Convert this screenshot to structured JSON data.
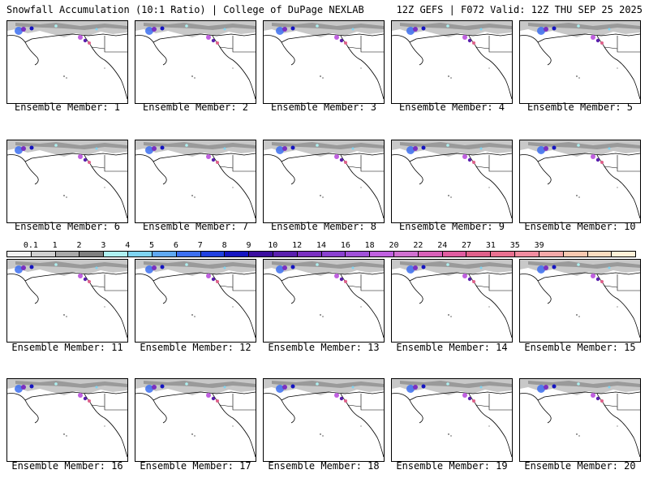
{
  "header": {
    "title_left": "Snowfall Accumulation (10:1 Ratio) | College of DuPage NEXLAB",
    "title_right": "12Z GEFS | F072 Valid: 12Z THU SEP 25 2025"
  },
  "members": [
    {
      "label": "Ensemble Member: 1"
    },
    {
      "label": "Ensemble Member: 2"
    },
    {
      "label": "Ensemble Member: 3"
    },
    {
      "label": "Ensemble Member: 4"
    },
    {
      "label": "Ensemble Member: 5"
    },
    {
      "label": "Ensemble Member: 6"
    },
    {
      "label": "Ensemble Member: 7"
    },
    {
      "label": "Ensemble Member: 8"
    },
    {
      "label": "Ensemble Member: 9"
    },
    {
      "label": "Ensemble Member: 10"
    },
    {
      "label": "Ensemble Member: 11"
    },
    {
      "label": "Ensemble Member: 12"
    },
    {
      "label": "Ensemble Member: 13"
    },
    {
      "label": "Ensemble Member: 14"
    },
    {
      "label": "Ensemble Member: 15"
    },
    {
      "label": "Ensemble Member: 16"
    },
    {
      "label": "Ensemble Member: 17"
    },
    {
      "label": "Ensemble Member: 18"
    },
    {
      "label": "Ensemble Member: 19"
    },
    {
      "label": "Ensemble Member: 20"
    }
  ],
  "legend": {
    "ticks": [
      "0.1",
      "1",
      "2",
      "3",
      "4",
      "5",
      "6",
      "7",
      "8",
      "9",
      "10",
      "12",
      "14",
      "16",
      "18",
      "20",
      "22",
      "24",
      "27",
      "31",
      "35",
      "39"
    ],
    "colors": [
      "#f2f2f2",
      "#d0d0d0",
      "#a8a8a8",
      "#7f7f7f",
      "#aef0f0",
      "#7fd4f0",
      "#5fa8f0",
      "#3c6ff0",
      "#2040e0",
      "#1414c0",
      "#3c0f9f",
      "#5a1fae",
      "#7a30c0",
      "#8a40d0",
      "#a050d8",
      "#c060e0",
      "#d070d0",
      "#d860b8",
      "#e05ca0",
      "#e0608a",
      "#e87090",
      "#f08ca0",
      "#f4a8a8",
      "#f8c8b0",
      "#fcdcc0",
      "#fff0d8"
    ]
  }
}
